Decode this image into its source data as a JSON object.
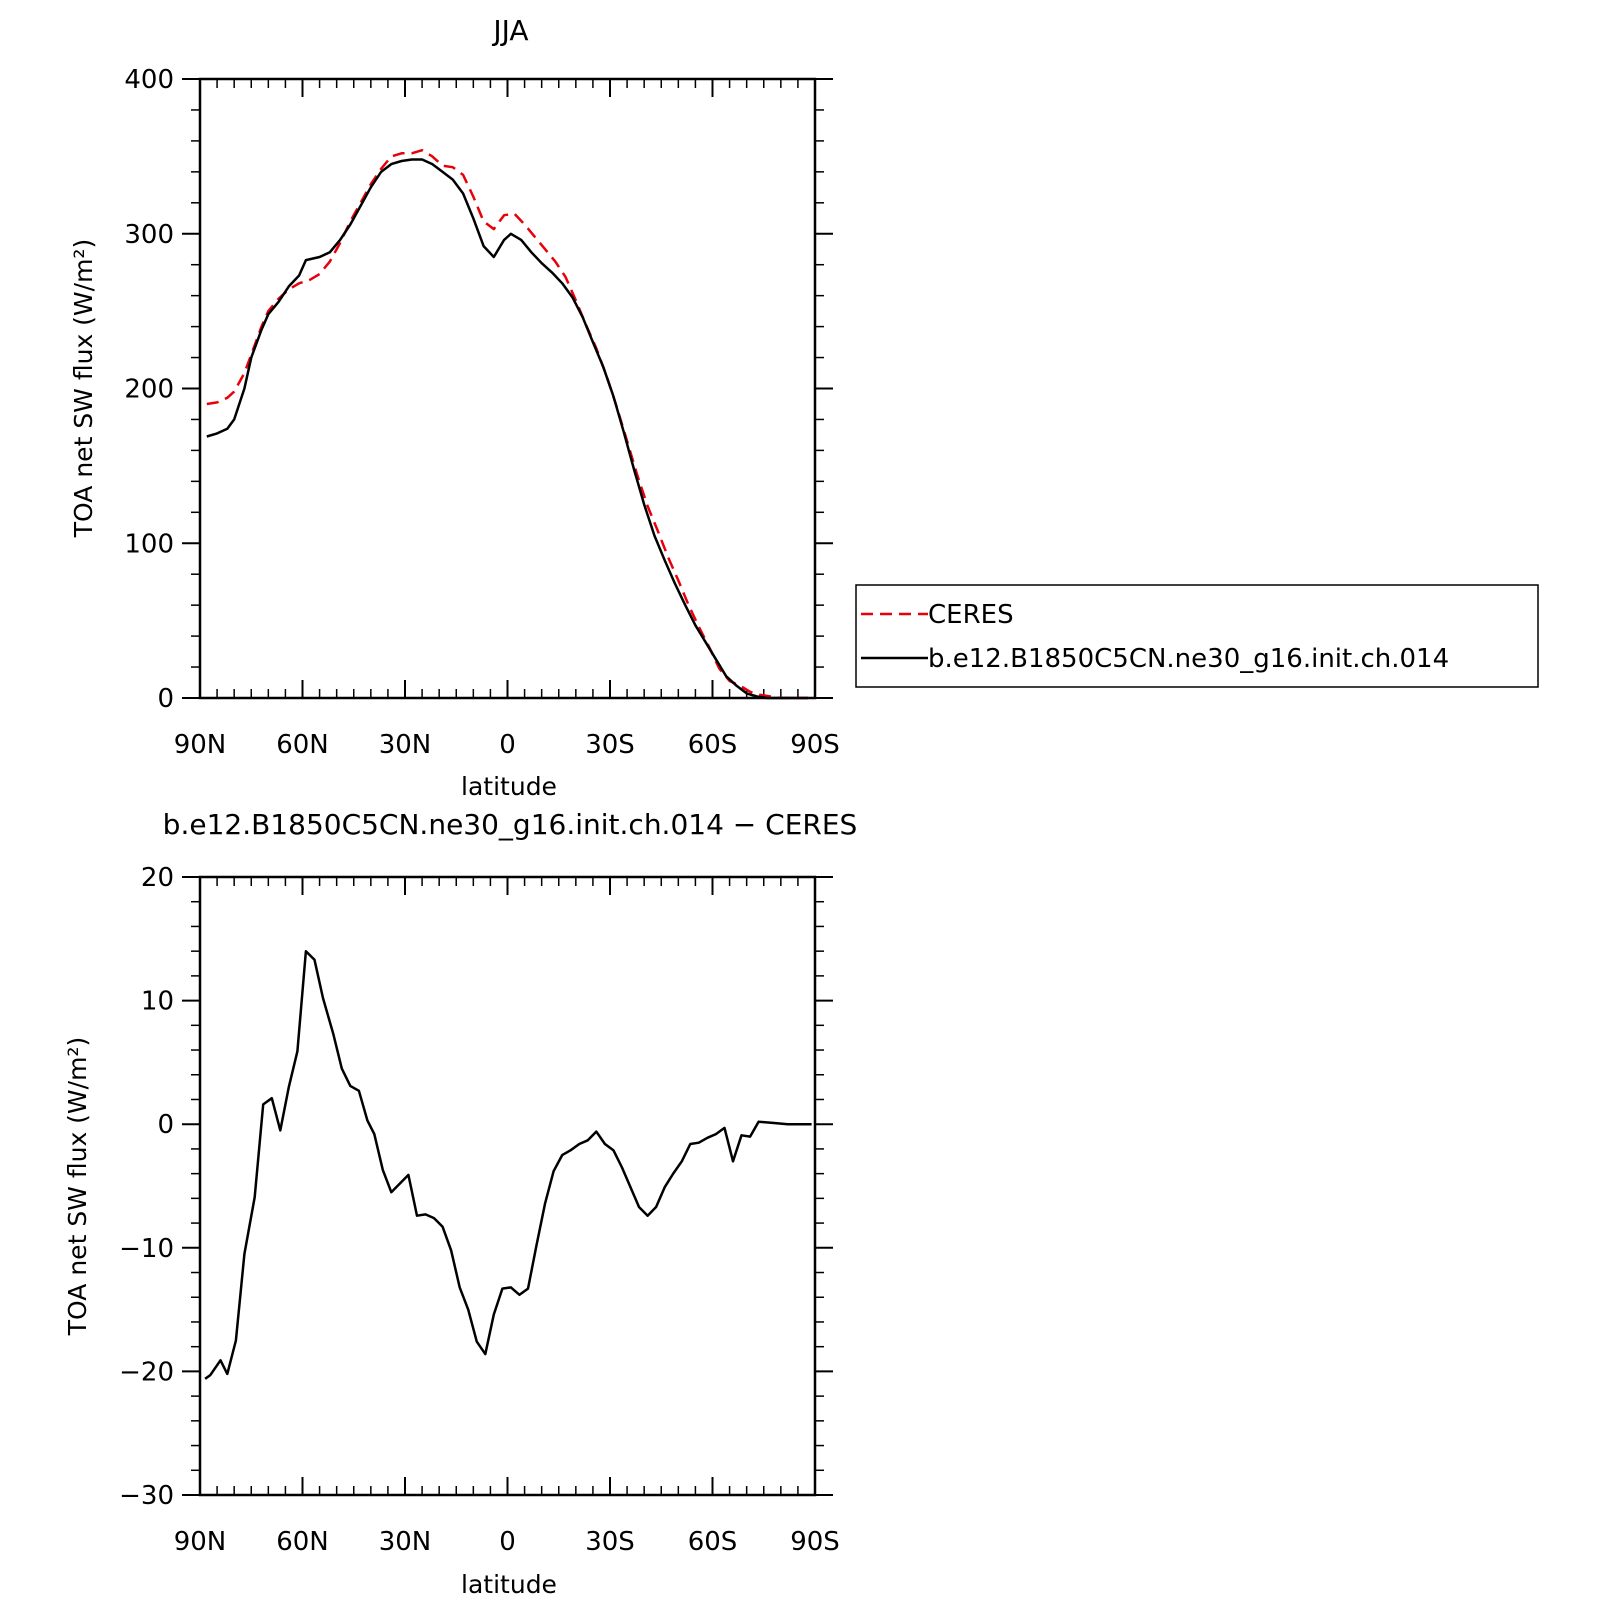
{
  "chart_data": [
    {
      "type": "line",
      "title": "JJA",
      "xlabel": "latitude",
      "ylabel": "TOA net SW flux (W/m²)",
      "xlim": [
        90,
        -90
      ],
      "ylim": [
        0,
        400
      ],
      "xticks": [
        90,
        60,
        30,
        0,
        -30,
        -60,
        -90
      ],
      "xticklabels": [
        "90N",
        "60N",
        "30N",
        "0",
        "30S",
        "60S",
        "90S"
      ],
      "yticks": [
        0,
        100,
        200,
        300,
        400
      ],
      "yticklabels": [
        "0",
        "100",
        "200",
        "300",
        "400"
      ],
      "legend_position": "right",
      "series": [
        {
          "name": "CERES",
          "color": "#e8000b",
          "dash": "dashed",
          "points": [
            [
              88,
              190
            ],
            [
              85,
              191
            ],
            [
              82,
              194
            ],
            [
              80,
              198
            ],
            [
              77,
              210
            ],
            [
              75,
              222
            ],
            [
              72,
              240
            ],
            [
              70,
              250
            ],
            [
              67,
              258
            ],
            [
              64,
              264
            ],
            [
              61,
              268
            ],
            [
              58,
              270
            ],
            [
              55,
              274
            ],
            [
              52,
              282
            ],
            [
              49,
              294
            ],
            [
              46,
              308
            ],
            [
              43,
              320
            ],
            [
              40,
              332
            ],
            [
              37,
              342
            ],
            [
              34,
              350
            ],
            [
              31,
              352
            ],
            [
              28,
              352
            ],
            [
              25,
              354
            ],
            [
              22,
              350
            ],
            [
              19,
              344
            ],
            [
              16,
              343
            ],
            [
              13,
              338
            ],
            [
              10,
              324
            ],
            [
              7,
              308
            ],
            [
              4,
              303
            ],
            [
              1,
              312
            ],
            [
              -2,
              313
            ],
            [
              -5,
              306
            ],
            [
              -8,
              298
            ],
            [
              -11,
              290
            ],
            [
              -14,
              282
            ],
            [
              -17,
              272
            ],
            [
              -20,
              257
            ],
            [
              -23,
              241
            ],
            [
              -26,
              226
            ],
            [
              -29,
              208
            ],
            [
              -32,
              188
            ],
            [
              -35,
              166
            ],
            [
              -38,
              144
            ],
            [
              -41,
              124
            ],
            [
              -44,
              108
            ],
            [
              -47,
              91
            ],
            [
              -50,
              76
            ],
            [
              -53,
              60
            ],
            [
              -56,
              46
            ],
            [
              -59,
              33
            ],
            [
              -62,
              19
            ],
            [
              -65,
              11
            ],
            [
              -68,
              8
            ],
            [
              -71,
              4
            ],
            [
              -74,
              2
            ],
            [
              -77,
              1
            ],
            [
              -80,
              0
            ],
            [
              -84,
              0
            ],
            [
              -88,
              0
            ]
          ]
        },
        {
          "name": "b.e12.B1850C5CN.ne30_g16.init.ch.014",
          "color": "#000000",
          "dash": "solid",
          "points": [
            [
              88,
              169
            ],
            [
              85,
              171
            ],
            [
              82,
              174
            ],
            [
              80,
              180
            ],
            [
              77,
              200
            ],
            [
              75,
              220
            ],
            [
              72,
              238
            ],
            [
              70,
              248
            ],
            [
              67,
              256
            ],
            [
              64,
              266
            ],
            [
              61,
              273
            ],
            [
              59,
              283
            ],
            [
              55,
              285
            ],
            [
              52,
              288
            ],
            [
              49,
              296
            ],
            [
              46,
              306
            ],
            [
              43,
              318
            ],
            [
              40,
              330
            ],
            [
              37,
              340
            ],
            [
              34,
              345
            ],
            [
              31,
              347
            ],
            [
              28,
              348
            ],
            [
              25,
              348
            ],
            [
              22,
              345
            ],
            [
              19,
              340
            ],
            [
              16,
              335
            ],
            [
              13,
              326
            ],
            [
              10,
              310
            ],
            [
              7,
              292
            ],
            [
              4,
              285
            ],
            [
              1,
              296
            ],
            [
              -1,
              300
            ],
            [
              -4,
              296
            ],
            [
              -7,
              288
            ],
            [
              -10,
              281
            ],
            [
              -13,
              275
            ],
            [
              -16,
              268
            ],
            [
              -19,
              259
            ],
            [
              -22,
              246
            ],
            [
              -25,
              230
            ],
            [
              -28,
              214
            ],
            [
              -31,
              195
            ],
            [
              -34,
              172
            ],
            [
              -37,
              148
            ],
            [
              -40,
              125
            ],
            [
              -43,
              105
            ],
            [
              -46,
              89
            ],
            [
              -49,
              74
            ],
            [
              -52,
              60
            ],
            [
              -55,
              47
            ],
            [
              -58,
              36
            ],
            [
              -61,
              25
            ],
            [
              -64,
              14
            ],
            [
              -67,
              8
            ],
            [
              -70,
              3
            ],
            [
              -73,
              1
            ],
            [
              -76,
              0
            ],
            [
              -80,
              0
            ],
            [
              -84,
              0
            ],
            [
              -88,
              0
            ]
          ]
        }
      ]
    },
    {
      "type": "line",
      "title": "b.e12.B1850C5CN.ne30_g16.init.ch.014 − CERES",
      "xlabel": "latitude",
      "ylabel": "TOA net SW flux (W/m²)",
      "xlim": [
        90,
        -90
      ],
      "ylim": [
        -30,
        20
      ],
      "xticks": [
        90,
        60,
        30,
        0,
        -30,
        -60,
        -90
      ],
      "xticklabels": [
        "90N",
        "60N",
        "30N",
        "0",
        "30S",
        "60S",
        "90S"
      ],
      "yticks": [
        -30,
        -20,
        -10,
        0,
        10,
        20
      ],
      "yticklabels": [
        "−30",
        "−20",
        "−10",
        "0",
        "10",
        "20"
      ],
      "series": [
        {
          "name": "",
          "color": "#000000",
          "dash": "solid",
          "points": [
            [
              88.5,
              -20.6
            ],
            [
              87,
              -20.3
            ],
            [
              84,
              -19.1
            ],
            [
              82,
              -20.2
            ],
            [
              79.5,
              -17.5
            ],
            [
              77,
              -10.5
            ],
            [
              74,
              -5.9
            ],
            [
              71.5,
              1.6
            ],
            [
              69,
              2.1
            ],
            [
              66.5,
              -0.5
            ],
            [
              64,
              3
            ],
            [
              61.5,
              5.9
            ],
            [
              59,
              14
            ],
            [
              56.5,
              13.3
            ],
            [
              54,
              10.2
            ],
            [
              51,
              7.3
            ],
            [
              48.5,
              4.5
            ],
            [
              46,
              3.1
            ],
            [
              43.5,
              2.7
            ],
            [
              41,
              0.3
            ],
            [
              39,
              -0.8
            ],
            [
              36.5,
              -3.7
            ],
            [
              34,
              -5.5
            ],
            [
              31.5,
              -4.8
            ],
            [
              29,
              -4.1
            ],
            [
              26.5,
              -7.4
            ],
            [
              24,
              -7.3
            ],
            [
              21.5,
              -7.6
            ],
            [
              19,
              -8.3
            ],
            [
              16.5,
              -10.2
            ],
            [
              14,
              -13.2
            ],
            [
              11.5,
              -15
            ],
            [
              9,
              -17.6
            ],
            [
              6.5,
              -18.6
            ],
            [
              4,
              -15.4
            ],
            [
              1.5,
              -13.3
            ],
            [
              -1,
              -13.2
            ],
            [
              -3.5,
              -13.8
            ],
            [
              -6,
              -13.3
            ],
            [
              -8.5,
              -9.8
            ],
            [
              -11,
              -6.4
            ],
            [
              -13.5,
              -3.8
            ],
            [
              -16,
              -2.5
            ],
            [
              -18.5,
              -2.1
            ],
            [
              -21,
              -1.6
            ],
            [
              -23.5,
              -1.3
            ],
            [
              -26,
              -0.6
            ],
            [
              -28.5,
              -1.6
            ],
            [
              -31,
              -2.1
            ],
            [
              -33.5,
              -3.5
            ],
            [
              -36,
              -5.1
            ],
            [
              -38.5,
              -6.7
            ],
            [
              -41,
              -7.4
            ],
            [
              -43.5,
              -6.7
            ],
            [
              -46,
              -5.1
            ],
            [
              -48.5,
              -4
            ],
            [
              -51,
              -3
            ],
            [
              -53.5,
              -1.6
            ],
            [
              -56,
              -1.5
            ],
            [
              -58.5,
              -1.1
            ],
            [
              -61,
              -0.8
            ],
            [
              -63.5,
              -0.3
            ],
            [
              -66,
              -3
            ],
            [
              -68.5,
              -0.9
            ],
            [
              -71,
              -1
            ],
            [
              -73.5,
              0.2
            ],
            [
              -78,
              0.1
            ],
            [
              -82,
              0
            ],
            [
              -86,
              0
            ],
            [
              -89,
              0
            ]
          ]
        }
      ]
    }
  ]
}
